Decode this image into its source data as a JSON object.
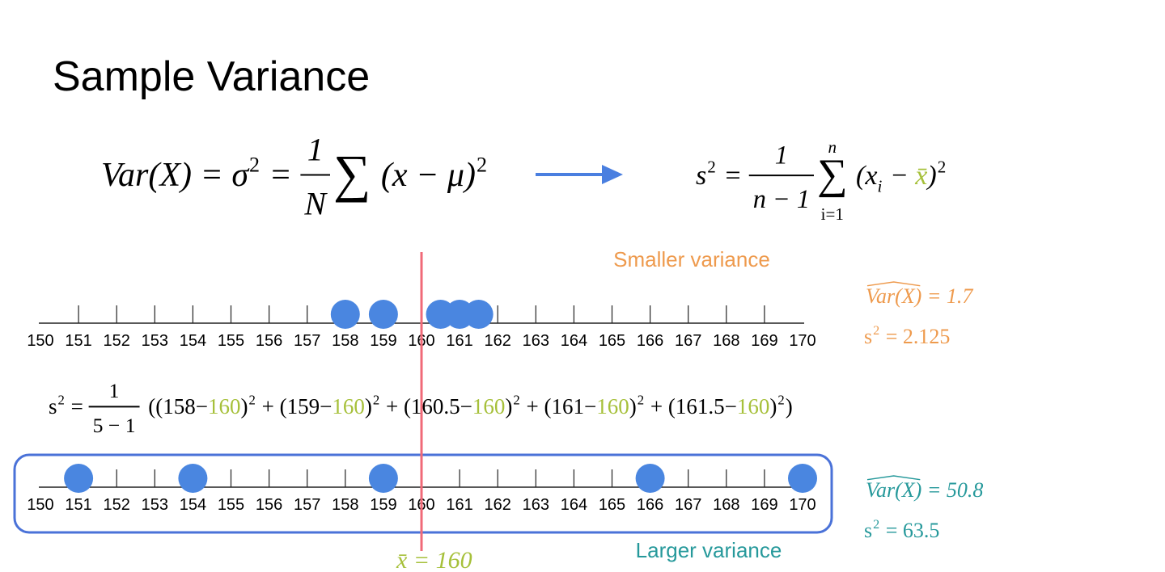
{
  "title": "Sample Variance",
  "population_formula": [
    {
      "t": "Var(X) = σ"
    },
    {
      "sup": "2"
    },
    {
      "t": " = "
    },
    {
      "frac": {
        "n": "1",
        "d": "N"
      }
    },
    {
      "sum": {
        "s": "∑"
      }
    },
    {
      "t": " (x − μ)"
    },
    {
      "sup": "2"
    }
  ],
  "sample_formula": [
    {
      "t": "s"
    },
    {
      "sup": "2"
    },
    {
      "t": " = "
    },
    {
      "frac": {
        "n": "1",
        "d": "n − 1"
      }
    },
    {
      "sum": {
        "s": "∑",
        "up": "n",
        "low": "i=1"
      }
    },
    {
      "t": " (x"
    },
    {
      "sub": "i"
    },
    {
      "t": " − "
    },
    {
      "m": "x̄"
    },
    {
      "t": ")"
    },
    {
      "sup": "2"
    }
  ],
  "mean": 160,
  "mean_label": [
    {
      "m": "x̄"
    },
    {
      "m": " = 160"
    }
  ],
  "expansion": [
    {
      "t": "s"
    },
    {
      "sup": "2"
    },
    {
      "t": " = "
    },
    {
      "frac": {
        "n": "1",
        "d": "5 − 1"
      }
    },
    {
      "t": " ((158−"
    },
    {
      "m": "160"
    },
    {
      "t": ")"
    },
    {
      "sup": "2"
    },
    {
      "t": " + (159−"
    },
    {
      "m": "160"
    },
    {
      "t": ")"
    },
    {
      "sup": "2"
    },
    {
      "t": " + (160.5−"
    },
    {
      "m": "160"
    },
    {
      "t": ")"
    },
    {
      "sup": "2"
    },
    {
      "t": " + (161−"
    },
    {
      "m": "160"
    },
    {
      "t": ")"
    },
    {
      "sup": "2"
    },
    {
      "t": " + (161.5−"
    },
    {
      "m": "160"
    },
    {
      "t": ")"
    },
    {
      "sup": "2"
    },
    {
      "t": ")"
    }
  ],
  "number_lines": [
    {
      "label": "Smaller variance",
      "color": "#ee9a4d",
      "boxed": false,
      "ticks": [
        150,
        151,
        152,
        153,
        154,
        155,
        156,
        157,
        158,
        159,
        160,
        161,
        162,
        163,
        164,
        165,
        166,
        167,
        168,
        169,
        170
      ],
      "points": [
        158,
        159,
        160.5,
        161,
        161.5
      ],
      "var_hat": [
        {
          "t": "Var(X)",
          "hat": true
        },
        {
          "t": " = 1.7"
        }
      ],
      "s2": [
        {
          "t": "s"
        },
        {
          "sup": "2"
        },
        {
          "t": " = 2.125"
        }
      ]
    },
    {
      "label": "Larger variance",
      "color": "#26999b",
      "boxed": true,
      "ticks": [
        150,
        151,
        152,
        153,
        154,
        155,
        156,
        157,
        158,
        159,
        160,
        161,
        162,
        163,
        164,
        165,
        166,
        167,
        168,
        169,
        170
      ],
      "points": [
        151,
        154,
        159,
        166,
        170
      ],
      "var_hat": [
        {
          "t": "Var(X)",
          "hat": true
        },
        {
          "t": " = 50.8"
        }
      ],
      "s2": [
        {
          "t": "s"
        },
        {
          "sup": "2"
        },
        {
          "t": " = 63.5"
        }
      ]
    }
  ]
}
